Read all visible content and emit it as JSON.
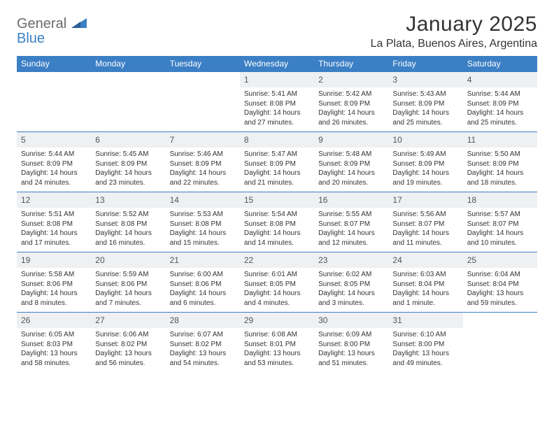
{
  "logo": {
    "part1": "General",
    "part2": "Blue"
  },
  "title": "January 2025",
  "location": "La Plata, Buenos Aires, Argentina",
  "colors": {
    "header_bg": "#3b7fc4",
    "header_text": "#ffffff",
    "daynum_bg": "#eef0f2",
    "page_bg": "#ffffff",
    "logo_gray": "#6a6a6a",
    "logo_blue": "#3b7fc4",
    "rule": "#3b7fc4"
  },
  "weekdays": [
    "Sunday",
    "Monday",
    "Tuesday",
    "Wednesday",
    "Thursday",
    "Friday",
    "Saturday"
  ],
  "weeks": [
    [
      null,
      null,
      null,
      {
        "n": "1",
        "sr": "Sunrise: 5:41 AM",
        "ss": "Sunset: 8:08 PM",
        "d1": "Daylight: 14 hours",
        "d2": "and 27 minutes."
      },
      {
        "n": "2",
        "sr": "Sunrise: 5:42 AM",
        "ss": "Sunset: 8:09 PM",
        "d1": "Daylight: 14 hours",
        "d2": "and 26 minutes."
      },
      {
        "n": "3",
        "sr": "Sunrise: 5:43 AM",
        "ss": "Sunset: 8:09 PM",
        "d1": "Daylight: 14 hours",
        "d2": "and 25 minutes."
      },
      {
        "n": "4",
        "sr": "Sunrise: 5:44 AM",
        "ss": "Sunset: 8:09 PM",
        "d1": "Daylight: 14 hours",
        "d2": "and 25 minutes."
      }
    ],
    [
      {
        "n": "5",
        "sr": "Sunrise: 5:44 AM",
        "ss": "Sunset: 8:09 PM",
        "d1": "Daylight: 14 hours",
        "d2": "and 24 minutes."
      },
      {
        "n": "6",
        "sr": "Sunrise: 5:45 AM",
        "ss": "Sunset: 8:09 PM",
        "d1": "Daylight: 14 hours",
        "d2": "and 23 minutes."
      },
      {
        "n": "7",
        "sr": "Sunrise: 5:46 AM",
        "ss": "Sunset: 8:09 PM",
        "d1": "Daylight: 14 hours",
        "d2": "and 22 minutes."
      },
      {
        "n": "8",
        "sr": "Sunrise: 5:47 AM",
        "ss": "Sunset: 8:09 PM",
        "d1": "Daylight: 14 hours",
        "d2": "and 21 minutes."
      },
      {
        "n": "9",
        "sr": "Sunrise: 5:48 AM",
        "ss": "Sunset: 8:09 PM",
        "d1": "Daylight: 14 hours",
        "d2": "and 20 minutes."
      },
      {
        "n": "10",
        "sr": "Sunrise: 5:49 AM",
        "ss": "Sunset: 8:09 PM",
        "d1": "Daylight: 14 hours",
        "d2": "and 19 minutes."
      },
      {
        "n": "11",
        "sr": "Sunrise: 5:50 AM",
        "ss": "Sunset: 8:09 PM",
        "d1": "Daylight: 14 hours",
        "d2": "and 18 minutes."
      }
    ],
    [
      {
        "n": "12",
        "sr": "Sunrise: 5:51 AM",
        "ss": "Sunset: 8:08 PM",
        "d1": "Daylight: 14 hours",
        "d2": "and 17 minutes."
      },
      {
        "n": "13",
        "sr": "Sunrise: 5:52 AM",
        "ss": "Sunset: 8:08 PM",
        "d1": "Daylight: 14 hours",
        "d2": "and 16 minutes."
      },
      {
        "n": "14",
        "sr": "Sunrise: 5:53 AM",
        "ss": "Sunset: 8:08 PM",
        "d1": "Daylight: 14 hours",
        "d2": "and 15 minutes."
      },
      {
        "n": "15",
        "sr": "Sunrise: 5:54 AM",
        "ss": "Sunset: 8:08 PM",
        "d1": "Daylight: 14 hours",
        "d2": "and 14 minutes."
      },
      {
        "n": "16",
        "sr": "Sunrise: 5:55 AM",
        "ss": "Sunset: 8:07 PM",
        "d1": "Daylight: 14 hours",
        "d2": "and 12 minutes."
      },
      {
        "n": "17",
        "sr": "Sunrise: 5:56 AM",
        "ss": "Sunset: 8:07 PM",
        "d1": "Daylight: 14 hours",
        "d2": "and 11 minutes."
      },
      {
        "n": "18",
        "sr": "Sunrise: 5:57 AM",
        "ss": "Sunset: 8:07 PM",
        "d1": "Daylight: 14 hours",
        "d2": "and 10 minutes."
      }
    ],
    [
      {
        "n": "19",
        "sr": "Sunrise: 5:58 AM",
        "ss": "Sunset: 8:06 PM",
        "d1": "Daylight: 14 hours",
        "d2": "and 8 minutes."
      },
      {
        "n": "20",
        "sr": "Sunrise: 5:59 AM",
        "ss": "Sunset: 8:06 PM",
        "d1": "Daylight: 14 hours",
        "d2": "and 7 minutes."
      },
      {
        "n": "21",
        "sr": "Sunrise: 6:00 AM",
        "ss": "Sunset: 8:06 PM",
        "d1": "Daylight: 14 hours",
        "d2": "and 6 minutes."
      },
      {
        "n": "22",
        "sr": "Sunrise: 6:01 AM",
        "ss": "Sunset: 8:05 PM",
        "d1": "Daylight: 14 hours",
        "d2": "and 4 minutes."
      },
      {
        "n": "23",
        "sr": "Sunrise: 6:02 AM",
        "ss": "Sunset: 8:05 PM",
        "d1": "Daylight: 14 hours",
        "d2": "and 3 minutes."
      },
      {
        "n": "24",
        "sr": "Sunrise: 6:03 AM",
        "ss": "Sunset: 8:04 PM",
        "d1": "Daylight: 14 hours",
        "d2": "and 1 minute."
      },
      {
        "n": "25",
        "sr": "Sunrise: 6:04 AM",
        "ss": "Sunset: 8:04 PM",
        "d1": "Daylight: 13 hours",
        "d2": "and 59 minutes."
      }
    ],
    [
      {
        "n": "26",
        "sr": "Sunrise: 6:05 AM",
        "ss": "Sunset: 8:03 PM",
        "d1": "Daylight: 13 hours",
        "d2": "and 58 minutes."
      },
      {
        "n": "27",
        "sr": "Sunrise: 6:06 AM",
        "ss": "Sunset: 8:02 PM",
        "d1": "Daylight: 13 hours",
        "d2": "and 56 minutes."
      },
      {
        "n": "28",
        "sr": "Sunrise: 6:07 AM",
        "ss": "Sunset: 8:02 PM",
        "d1": "Daylight: 13 hours",
        "d2": "and 54 minutes."
      },
      {
        "n": "29",
        "sr": "Sunrise: 6:08 AM",
        "ss": "Sunset: 8:01 PM",
        "d1": "Daylight: 13 hours",
        "d2": "and 53 minutes."
      },
      {
        "n": "30",
        "sr": "Sunrise: 6:09 AM",
        "ss": "Sunset: 8:00 PM",
        "d1": "Daylight: 13 hours",
        "d2": "and 51 minutes."
      },
      {
        "n": "31",
        "sr": "Sunrise: 6:10 AM",
        "ss": "Sunset: 8:00 PM",
        "d1": "Daylight: 13 hours",
        "d2": "and 49 minutes."
      },
      null
    ]
  ]
}
